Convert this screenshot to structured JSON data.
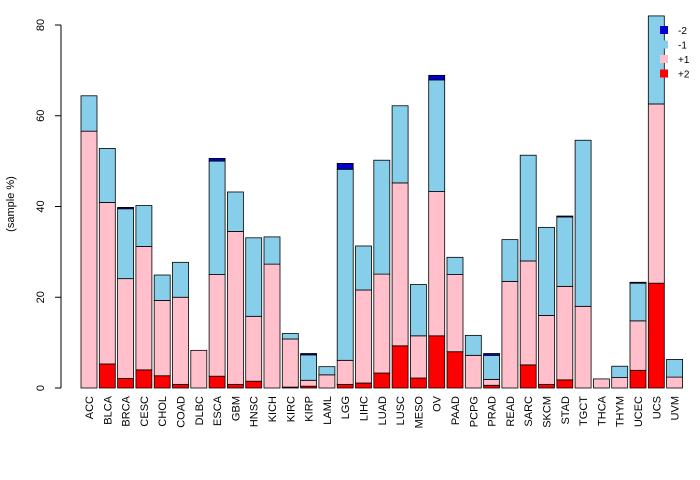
{
  "chart_data": {
    "type": "bar",
    "stacked": true,
    "title": "",
    "xlabel": "",
    "ylabel": "(sample %)",
    "ylim": [
      0,
      83
    ],
    "yticks": [
      0,
      20,
      40,
      60,
      80
    ],
    "categories": [
      "ACC",
      "BLCA",
      "BRCA",
      "CESC",
      "CHOL",
      "COAD",
      "DLBC",
      "ESCA",
      "GBM",
      "HNSC",
      "KICH",
      "KIRC",
      "KIRP",
      "LAML",
      "LGG",
      "LIHC",
      "LUAD",
      "LUSC",
      "MESO",
      "OV",
      "PAAD",
      "PCPG",
      "PRAD",
      "READ",
      "SARC",
      "SKCM",
      "STAD",
      "TGCT",
      "THCA",
      "THYM",
      "UCEC",
      "UCS",
      "UVM"
    ],
    "series": [
      {
        "name": "+2",
        "color": "#ff0000",
        "values": [
          0,
          5.3,
          2.1,
          4.0,
          2.7,
          0.8,
          0,
          2.6,
          0.8,
          1.5,
          0,
          0.2,
          0.4,
          0,
          0.8,
          1.1,
          3.3,
          9.3,
          2.2,
          11.5,
          8.0,
          0,
          0.6,
          0,
          5.1,
          0.8,
          1.8,
          0,
          0,
          0,
          3.9,
          23.1,
          0
        ]
      },
      {
        "name": "+1",
        "color": "#ffc0cb",
        "values": [
          56.6,
          35.6,
          22.0,
          27.2,
          16.6,
          19.2,
          8.3,
          22.4,
          33.7,
          14.3,
          27.3,
          10.6,
          1.3,
          2.9,
          5.3,
          20.5,
          21.8,
          35.9,
          9.3,
          31.8,
          17.0,
          7.2,
          1.3,
          23.5,
          22.9,
          15.2,
          20.6,
          18.0,
          2.0,
          2.3,
          10.9,
          39.5,
          2.4
        ]
      },
      {
        "name": "-1",
        "color": "#87ceeb",
        "values": [
          7.8,
          11.9,
          15.4,
          9.0,
          5.6,
          7.7,
          0,
          25.0,
          8.7,
          17.3,
          6.0,
          1.2,
          5.6,
          1.8,
          42.1,
          9.7,
          25.1,
          17.0,
          11.3,
          24.6,
          3.8,
          4.4,
          5.3,
          9.2,
          23.3,
          19.4,
          15.3,
          36.6,
          0,
          2.5,
          8.3,
          19.4,
          3.9
        ]
      },
      {
        "name": "-2",
        "color": "#0000cd",
        "values": [
          0,
          0,
          0.3,
          0,
          0,
          0,
          0,
          0.6,
          0,
          0,
          0,
          0,
          0.3,
          0,
          1.3,
          0,
          0,
          0,
          0,
          1.0,
          0,
          0,
          0.4,
          0,
          0,
          0,
          0.2,
          0,
          0,
          0,
          0.2,
          0,
          0
        ]
      }
    ],
    "legend": {
      "position": "top-right",
      "entries": [
        "-2",
        "-1",
        "+1",
        "+2"
      ]
    }
  }
}
